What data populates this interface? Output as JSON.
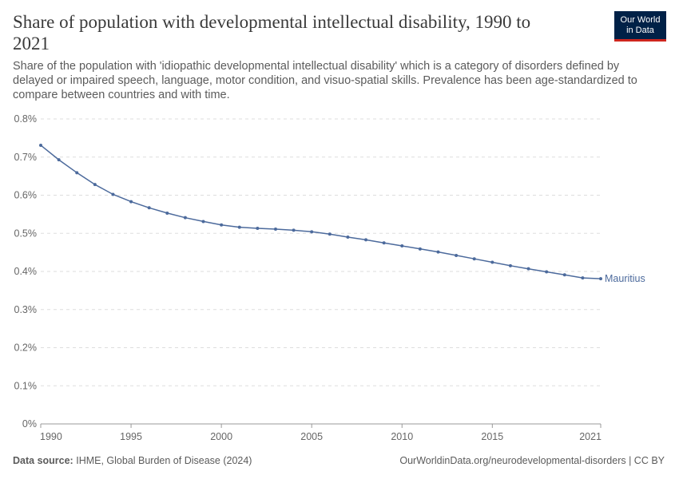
{
  "header": {
    "title_line1": "Share of population with developmental intellectual disability, 1990 to",
    "title_line2": "2021",
    "subtitle": "Share of the population with 'idiopathic developmental intellectual disability' which is a category of disorders defined by delayed or impaired speech, language, motor condition, and visuo-spatial skills. Prevalence has been age-standardized to compare between countries and with time."
  },
  "logo": {
    "line1": "Our World",
    "line2": "in Data",
    "bg_color": "#002147",
    "accent_color": "#ce261e"
  },
  "footer": {
    "source_label": "Data source:",
    "source_text": "IHME, Global Burden of Disease (2024)",
    "url_text": "OurWorldinData.org/neurodevelopmental-disorders | CC BY"
  },
  "chart_data": {
    "type": "line",
    "x": [
      1990,
      1991,
      1992,
      1993,
      1994,
      1995,
      1996,
      1997,
      1998,
      1999,
      2000,
      2001,
      2002,
      2003,
      2004,
      2005,
      2006,
      2007,
      2008,
      2009,
      2010,
      2011,
      2012,
      2013,
      2014,
      2015,
      2016,
      2017,
      2018,
      2019,
      2020,
      2021
    ],
    "series": [
      {
        "name": "Mauritius",
        "color": "#4c6a9c",
        "values": [
          0.731,
          0.693,
          0.659,
          0.628,
          0.602,
          0.583,
          0.567,
          0.553,
          0.541,
          0.531,
          0.522,
          0.516,
          0.513,
          0.511,
          0.508,
          0.504,
          0.498,
          0.49,
          0.483,
          0.475,
          0.467,
          0.459,
          0.451,
          0.442,
          0.433,
          0.424,
          0.415,
          0.407,
          0.399,
          0.391,
          0.383,
          0.381
        ]
      }
    ],
    "xlim": [
      1990,
      2021
    ],
    "ylim": [
      0,
      0.8
    ],
    "x_ticks": [
      1990,
      1995,
      2000,
      2005,
      2010,
      2015,
      2021
    ],
    "x_tick_labels": [
      "1990",
      "1995",
      "2000",
      "2005",
      "2010",
      "2015",
      "2021"
    ],
    "y_ticks": [
      0,
      0.1,
      0.2,
      0.3,
      0.4,
      0.5,
      0.6,
      0.7,
      0.8
    ],
    "y_tick_labels": [
      "0%",
      "0.1%",
      "0.2%",
      "0.3%",
      "0.4%",
      "0.5%",
      "0.6%",
      "0.7%",
      "0.8%"
    ],
    "grid": "horizontal dashed",
    "legend": "inline label at line end"
  }
}
